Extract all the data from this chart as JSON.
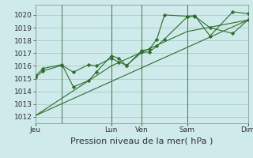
{
  "bg_color": "#ceeaea",
  "grid_color": "#aacccc",
  "line_color": "#2d6e2d",
  "marker_color": "#2d6e2d",
  "ylim": [
    1011.5,
    1020.8
  ],
  "yticks": [
    1012,
    1013,
    1014,
    1015,
    1016,
    1017,
    1018,
    1019,
    1020
  ],
  "xlabel": "Pression niveau de la mer( hPa )",
  "xlabel_fontsize": 8,
  "tick_fontsize": 6.5,
  "day_labels": [
    "Jeu",
    "Lun",
    "Ven",
    "Sam",
    "Dim"
  ],
  "day_positions": [
    0,
    10,
    14,
    20,
    28
  ],
  "xlim": [
    0,
    28
  ],
  "vline_positions": [
    3.5,
    10,
    14,
    20,
    28
  ],
  "vline_color": "#447744",
  "series1_x": [
    0,
    1,
    3.5,
    5,
    7,
    8,
    10,
    11,
    12,
    14,
    15,
    16,
    17,
    20,
    21,
    23,
    26,
    28
  ],
  "series1_y": [
    1015.1,
    1015.6,
    1016.05,
    1015.5,
    1016.1,
    1016.0,
    1016.6,
    1016.3,
    1016.05,
    1017.05,
    1017.1,
    1017.55,
    1018.1,
    1019.85,
    1019.9,
    1019.0,
    1018.55,
    1019.6
  ],
  "series2_x": [
    0,
    1,
    3.5,
    5,
    7,
    8,
    10,
    11,
    12,
    14,
    15,
    16,
    17,
    20,
    21,
    23,
    26,
    28
  ],
  "series2_y": [
    1015.2,
    1015.8,
    1016.1,
    1014.35,
    1014.85,
    1015.5,
    1016.8,
    1016.6,
    1016.0,
    1017.2,
    1017.3,
    1018.1,
    1020.0,
    1019.9,
    1019.95,
    1018.35,
    1020.25,
    1020.1
  ],
  "series3_x": [
    0,
    10,
    20,
    28
  ],
  "series3_y": [
    1012.1,
    1016.0,
    1018.7,
    1019.6
  ],
  "series4_x": [
    0,
    28
  ],
  "series4_y": [
    1012.1,
    1019.6
  ]
}
